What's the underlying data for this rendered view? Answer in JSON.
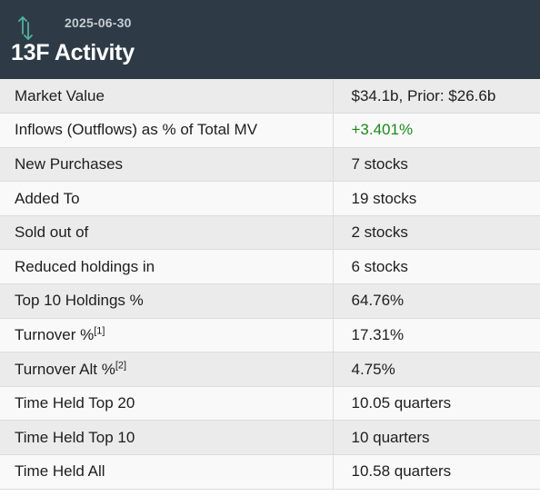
{
  "header": {
    "date": "2025-06-30",
    "title": "13F Activity",
    "icon": "up-down-arrows-icon",
    "icon_color": "#4fb39b",
    "background": "#2e3b46"
  },
  "rows": [
    {
      "label": "Market Value",
      "value": "$34.1b, Prior: $26.6b"
    },
    {
      "label": "Inflows (Outflows) as % of Total MV",
      "value": "+3.401%",
      "value_color": "#1a8a1a"
    },
    {
      "label": "New Purchases",
      "value": "7 stocks"
    },
    {
      "label": "Added To",
      "value": "19 stocks"
    },
    {
      "label": "Sold out of",
      "value": "2 stocks"
    },
    {
      "label": "Reduced holdings in",
      "value": "6 stocks"
    },
    {
      "label": "Top 10 Holdings %",
      "value": "64.76%"
    },
    {
      "label": "Turnover %",
      "footnote": "[1]",
      "value": "17.31%"
    },
    {
      "label": "Turnover Alt %",
      "footnote": "[2]",
      "value": "4.75%"
    },
    {
      "label": "Time Held Top 20",
      "value": "10.05 quarters"
    },
    {
      "label": "Time Held Top 10",
      "value": "10 quarters"
    },
    {
      "label": "Time Held All",
      "value": "10.58 quarters"
    }
  ]
}
